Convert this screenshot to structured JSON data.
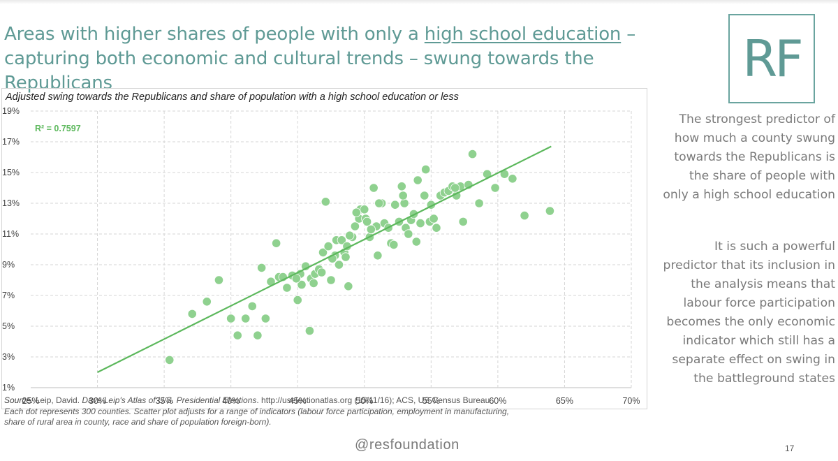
{
  "title": {
    "part1": "Areas with higher shares of people with only a ",
    "underlined": "high school education",
    "part2": " – capturing both economic and cultural trends – swung towards the Republicans"
  },
  "logo": "RF",
  "colors": {
    "accent": "#5f9a95",
    "dots": "#8fd18f",
    "trend": "#5cb85c",
    "r2": "#5cb85c"
  },
  "chart_data": {
    "type": "scatter",
    "title": "Adjusted swing towards the Republicans and share of population with a high school education or less",
    "x_ticks": [
      "25%",
      "30%",
      "35%",
      "40%",
      "45%",
      "50%",
      "55%",
      "60%",
      "65%",
      "70%"
    ],
    "y_ticks": [
      "1%",
      "3%",
      "5%",
      "7%",
      "9%",
      "11%",
      "13%",
      "15%",
      "17%",
      "19%"
    ],
    "xlim": [
      25,
      70
    ],
    "ylim": [
      1,
      19
    ],
    "grid": "dashed",
    "annotation": "R² = 0.7597",
    "trendline": {
      "x1": 30,
      "y1": 2.0,
      "x2": 64,
      "y2": 16.7
    },
    "points": [
      [
        35.4,
        2.8
      ],
      [
        37.1,
        5.8
      ],
      [
        38.2,
        6.6
      ],
      [
        39.1,
        8.0
      ],
      [
        40.0,
        5.5
      ],
      [
        40.5,
        4.4
      ],
      [
        41.1,
        5.5
      ],
      [
        41.6,
        6.3
      ],
      [
        42.0,
        4.4
      ],
      [
        42.3,
        8.8
      ],
      [
        42.6,
        5.5
      ],
      [
        43.0,
        7.9
      ],
      [
        43.4,
        10.4
      ],
      [
        43.6,
        8.2
      ],
      [
        43.9,
        8.2
      ],
      [
        44.2,
        7.5
      ],
      [
        44.6,
        8.3
      ],
      [
        45.0,
        6.7
      ],
      [
        45.2,
        8.4
      ],
      [
        45.3,
        7.7
      ],
      [
        45.6,
        8.9
      ],
      [
        45.9,
        4.7
      ],
      [
        46.0,
        8.1
      ],
      [
        46.2,
        7.8
      ],
      [
        46.3,
        8.4
      ],
      [
        46.6,
        8.7
      ],
      [
        46.8,
        8.5
      ],
      [
        46.9,
        9.8
      ],
      [
        47.1,
        13.1
      ],
      [
        47.3,
        10.2
      ],
      [
        47.5,
        8.0
      ],
      [
        47.8,
        9.6
      ],
      [
        47.9,
        10.6
      ],
      [
        48.1,
        9.0
      ],
      [
        48.3,
        10.6
      ],
      [
        48.5,
        9.8
      ],
      [
        48.6,
        9.5
      ],
      [
        48.7,
        10.2
      ],
      [
        48.8,
        7.6
      ],
      [
        49.1,
        10.8
      ],
      [
        49.3,
        11.5
      ],
      [
        49.6,
        12.0
      ],
      [
        49.7,
        12.6
      ],
      [
        50.0,
        12.6
      ],
      [
        50.1,
        12.0
      ],
      [
        50.2,
        11.8
      ],
      [
        50.4,
        10.8
      ],
      [
        50.7,
        14.0
      ],
      [
        50.9,
        11.5
      ],
      [
        51.0,
        9.6
      ],
      [
        51.3,
        13.0
      ],
      [
        51.5,
        11.7
      ],
      [
        51.8,
        11.4
      ],
      [
        52.0,
        10.4
      ],
      [
        52.3,
        12.9
      ],
      [
        52.6,
        11.8
      ],
      [
        52.8,
        14.1
      ],
      [
        53.0,
        13.0
      ],
      [
        53.1,
        11.4
      ],
      [
        53.5,
        11.9
      ],
      [
        53.7,
        12.3
      ],
      [
        53.9,
        10.5
      ],
      [
        54.0,
        14.5
      ],
      [
        54.2,
        11.7
      ],
      [
        54.5,
        13.5
      ],
      [
        54.6,
        15.2
      ],
      [
        54.9,
        11.8
      ],
      [
        55.2,
        12.0
      ],
      [
        55.4,
        11.4
      ],
      [
        55.7,
        13.5
      ],
      [
        56.0,
        13.7
      ],
      [
        56.3,
        13.8
      ],
      [
        56.6,
        14.1
      ],
      [
        56.9,
        13.5
      ],
      [
        57.2,
        14.1
      ],
      [
        57.4,
        11.8
      ],
      [
        57.8,
        14.2
      ],
      [
        58.1,
        16.2
      ],
      [
        58.6,
        13.0
      ],
      [
        59.2,
        14.9
      ],
      [
        59.8,
        14.0
      ],
      [
        60.5,
        14.9
      ],
      [
        61.1,
        14.6
      ],
      [
        62.0,
        12.2
      ],
      [
        63.9,
        12.5
      ],
      [
        52.2,
        10.3
      ],
      [
        55.0,
        12.9
      ],
      [
        53.3,
        11.0
      ],
      [
        49.4,
        12.4
      ],
      [
        56.8,
        14.0
      ],
      [
        52.9,
        13.5
      ],
      [
        50.5,
        11.3
      ],
      [
        51.1,
        13.0
      ],
      [
        48.9,
        10.9
      ],
      [
        47.6,
        9.4
      ],
      [
        44.9,
        8.1
      ]
    ]
  },
  "side_text": {
    "p1": "The strongest predictor of how much a county swung towards the Republicans is the share of people with only a high school education",
    "p2": "It is such a powerful predictor that its inclusion in the analysis means that labour force participation becomes the only economic indicator which still has a separate effect on swing in the battleground states"
  },
  "source": {
    "label": "Source:",
    "author": " Leip, David. ",
    "atlas": "Dave Leip's Atlas of U.S. Presidential Elections",
    "rest1": ". http://uselectionatlas.org (15/11/16); ACS, US Census Bureau",
    "line2": "Each dot represents 300 counties. Scatter plot adjusts for a range of indicators (labour force participation, employment in manufacturing,",
    "line3": "share of rural area in county, race and share of population foreign-born)."
  },
  "handle": "@resfoundation",
  "page_number": "17"
}
